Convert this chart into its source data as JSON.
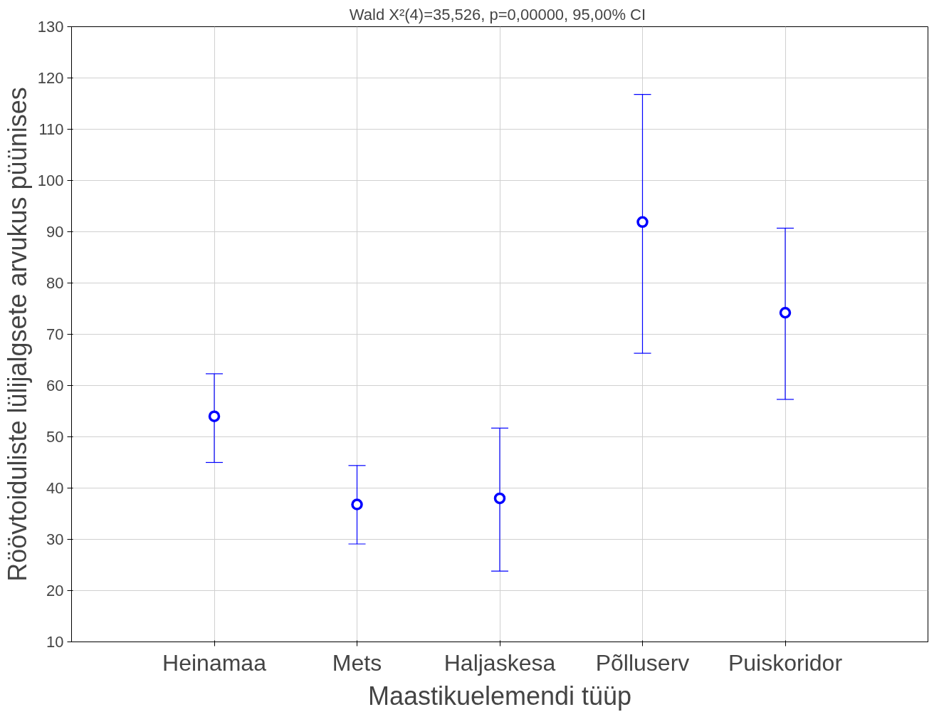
{
  "chart_data": {
    "type": "scatter",
    "title": "Wald  X²(4)=35,526, p=0,00000, 95,00% CI",
    "xlabel": "Maastikuelemendi tüüp",
    "ylabel": "Röövtoiduliste lülijalgsete arvukus püünises",
    "categories": [
      "Heinamaa",
      "Mets",
      "Haljaskesa",
      "Põlluserv",
      "Puiskoridor"
    ],
    "series": [
      {
        "color": "#0000ff",
        "values": [
          54.0,
          36.8,
          38.0,
          91.9,
          74.2
        ],
        "errors": [
          [
            45.0,
            62.3
          ],
          [
            29.1,
            44.4
          ],
          [
            23.8,
            51.7
          ],
          [
            66.3,
            116.8
          ],
          [
            57.3,
            90.7
          ]
        ]
      }
    ],
    "ylim": [
      10,
      130
    ],
    "yticks": [
      10,
      20,
      30,
      40,
      50,
      60,
      70,
      80,
      90,
      100,
      110,
      120,
      130
    ],
    "grid": true,
    "marker": "circle"
  }
}
